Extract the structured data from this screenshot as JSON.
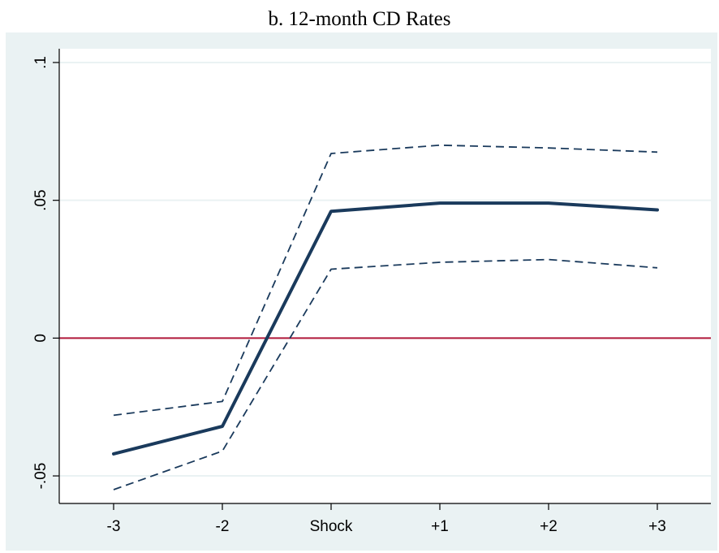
{
  "chart_data": {
    "type": "line",
    "title": "b. 12-month CD Rates",
    "xlabel": "",
    "ylabel": "",
    "categories": [
      "-3",
      "-2",
      "Shock",
      "+1",
      "+2",
      "+3"
    ],
    "ylim": [
      -0.06,
      0.105
    ],
    "yticks": [
      {
        "value": -0.05,
        "label": "-.05"
      },
      {
        "value": 0,
        "label": "0"
      },
      {
        "value": 0.05,
        "label": ".05"
      },
      {
        "value": 0.1,
        "label": ".1"
      }
    ],
    "grid": true,
    "reference_line": {
      "value": 0,
      "color": "#b2183b"
    },
    "series": [
      {
        "role": "estimate",
        "style": "solid",
        "color": "#1a3a5c",
        "values": [
          -0.042,
          -0.032,
          0.046,
          0.049,
          0.049,
          0.0465
        ]
      },
      {
        "role": "upper",
        "style": "dashed",
        "color": "#1a3a5c",
        "values": [
          -0.028,
          -0.023,
          0.067,
          0.07,
          0.069,
          0.0675
        ]
      },
      {
        "role": "lower",
        "style": "dashed",
        "color": "#1a3a5c",
        "values": [
          -0.055,
          -0.041,
          0.025,
          0.0275,
          0.0285,
          0.0255
        ]
      }
    ],
    "colors": {
      "plot_region_bg": "#eaf2f3",
      "plot_bg": "#ffffff",
      "grid": "#eaf2f3",
      "axis": "#000000"
    }
  }
}
